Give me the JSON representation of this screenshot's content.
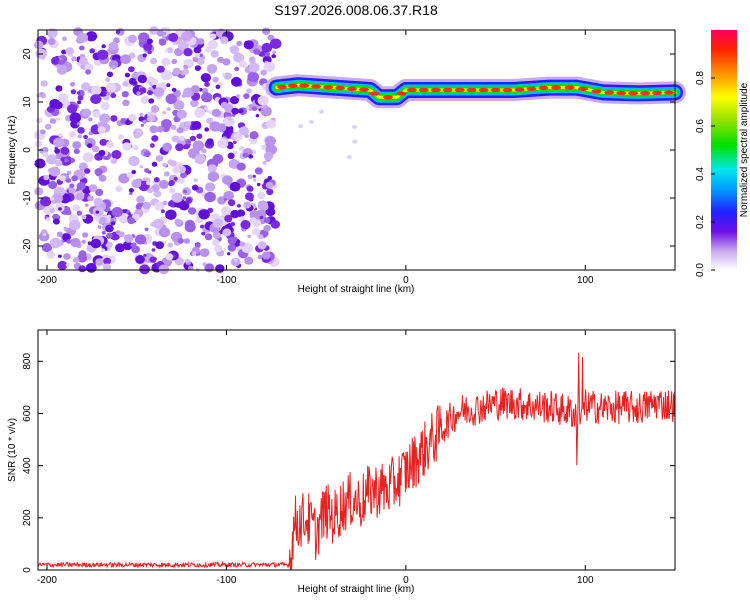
{
  "title": "S197.2026.008.06.37.R18",
  "chart_data": [
    {
      "type": "heatmap",
      "xlabel": "Height of straight line (km)",
      "ylabel": "Frequency (Hz)",
      "xlim": [
        -205,
        150
      ],
      "ylim": [
        -25,
        25
      ],
      "x_ticks": [
        -200,
        -100,
        0,
        100
      ],
      "y_ticks": [
        -20,
        -10,
        0,
        10,
        20
      ],
      "colorbar": {
        "label": "Normalized spectral amplitude",
        "range": [
          0,
          1
        ],
        "ticks": [
          0.0,
          0.2,
          0.4,
          0.6,
          0.8
        ]
      },
      "noise_region_x": [
        -205,
        -72
      ],
      "signal_track": {
        "x": [
          -72,
          -60,
          -40,
          -20,
          -15,
          -5,
          0,
          20,
          40,
          60,
          80,
          95,
          110,
          130,
          150
        ],
        "y": [
          13,
          13.5,
          13,
          12.5,
          11,
          11,
          12.5,
          12.5,
          12.5,
          12.5,
          13,
          13,
          12,
          11.8,
          12
        ]
      }
    },
    {
      "type": "line",
      "xlabel": "Height of straight line (km)",
      "ylabel": "SNR (10 * v/v)",
      "xlim": [
        -205,
        150
      ],
      "ylim": [
        0,
        920
      ],
      "x_ticks": [
        -200,
        -100,
        0,
        100
      ],
      "y_ticks": [
        0,
        200,
        400,
        600,
        800
      ],
      "series": [
        {
          "name": "SNR",
          "color": "#e82020",
          "x": [
            -205,
            -65,
            -62,
            -55,
            -50,
            -45,
            -40,
            -35,
            -30,
            -25,
            -20,
            -15,
            -10,
            -5,
            0,
            5,
            10,
            15,
            20,
            25,
            30,
            40,
            50,
            60,
            70,
            80,
            90,
            95,
            100,
            110,
            120,
            130,
            140,
            150
          ],
          "y": [
            20,
            20,
            180,
            200,
            140,
            230,
            200,
            250,
            270,
            260,
            300,
            310,
            310,
            340,
            380,
            420,
            460,
            500,
            540,
            580,
            610,
            620,
            640,
            640,
            630,
            625,
            610,
            600,
            630,
            620,
            625,
            620,
            640,
            630
          ]
        }
      ]
    }
  ]
}
